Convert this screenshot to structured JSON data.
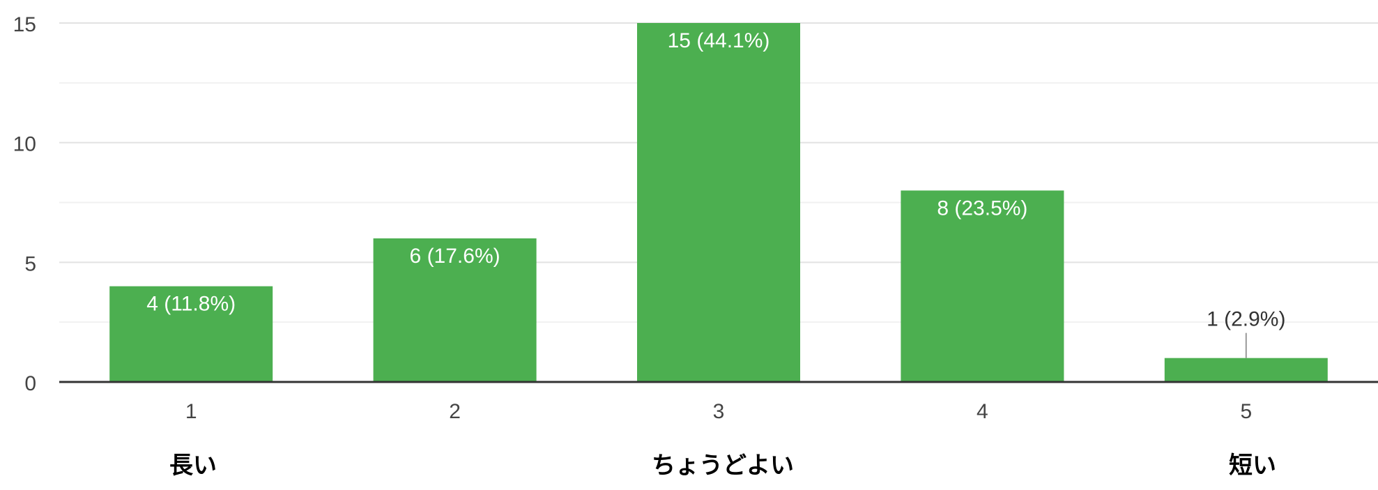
{
  "chart_data": {
    "type": "bar",
    "categories": [
      "1",
      "2",
      "3",
      "4",
      "5"
    ],
    "values": [
      4,
      6,
      15,
      8,
      1
    ],
    "data_labels": [
      "4 (11.8%)",
      "6 (17.6%)",
      "15 (44.1%)",
      "8 (23.5%)",
      "1 (2.9%)"
    ],
    "y_ticks": [
      0,
      5,
      10,
      15
    ],
    "ylim": [
      0,
      15
    ],
    "grid": true,
    "bar_color": "#4caf50",
    "title": "",
    "xlabel": "",
    "ylabel": ""
  },
  "scale_labels": {
    "low": "長い",
    "mid": "ちょうどよい",
    "high": "短い"
  }
}
